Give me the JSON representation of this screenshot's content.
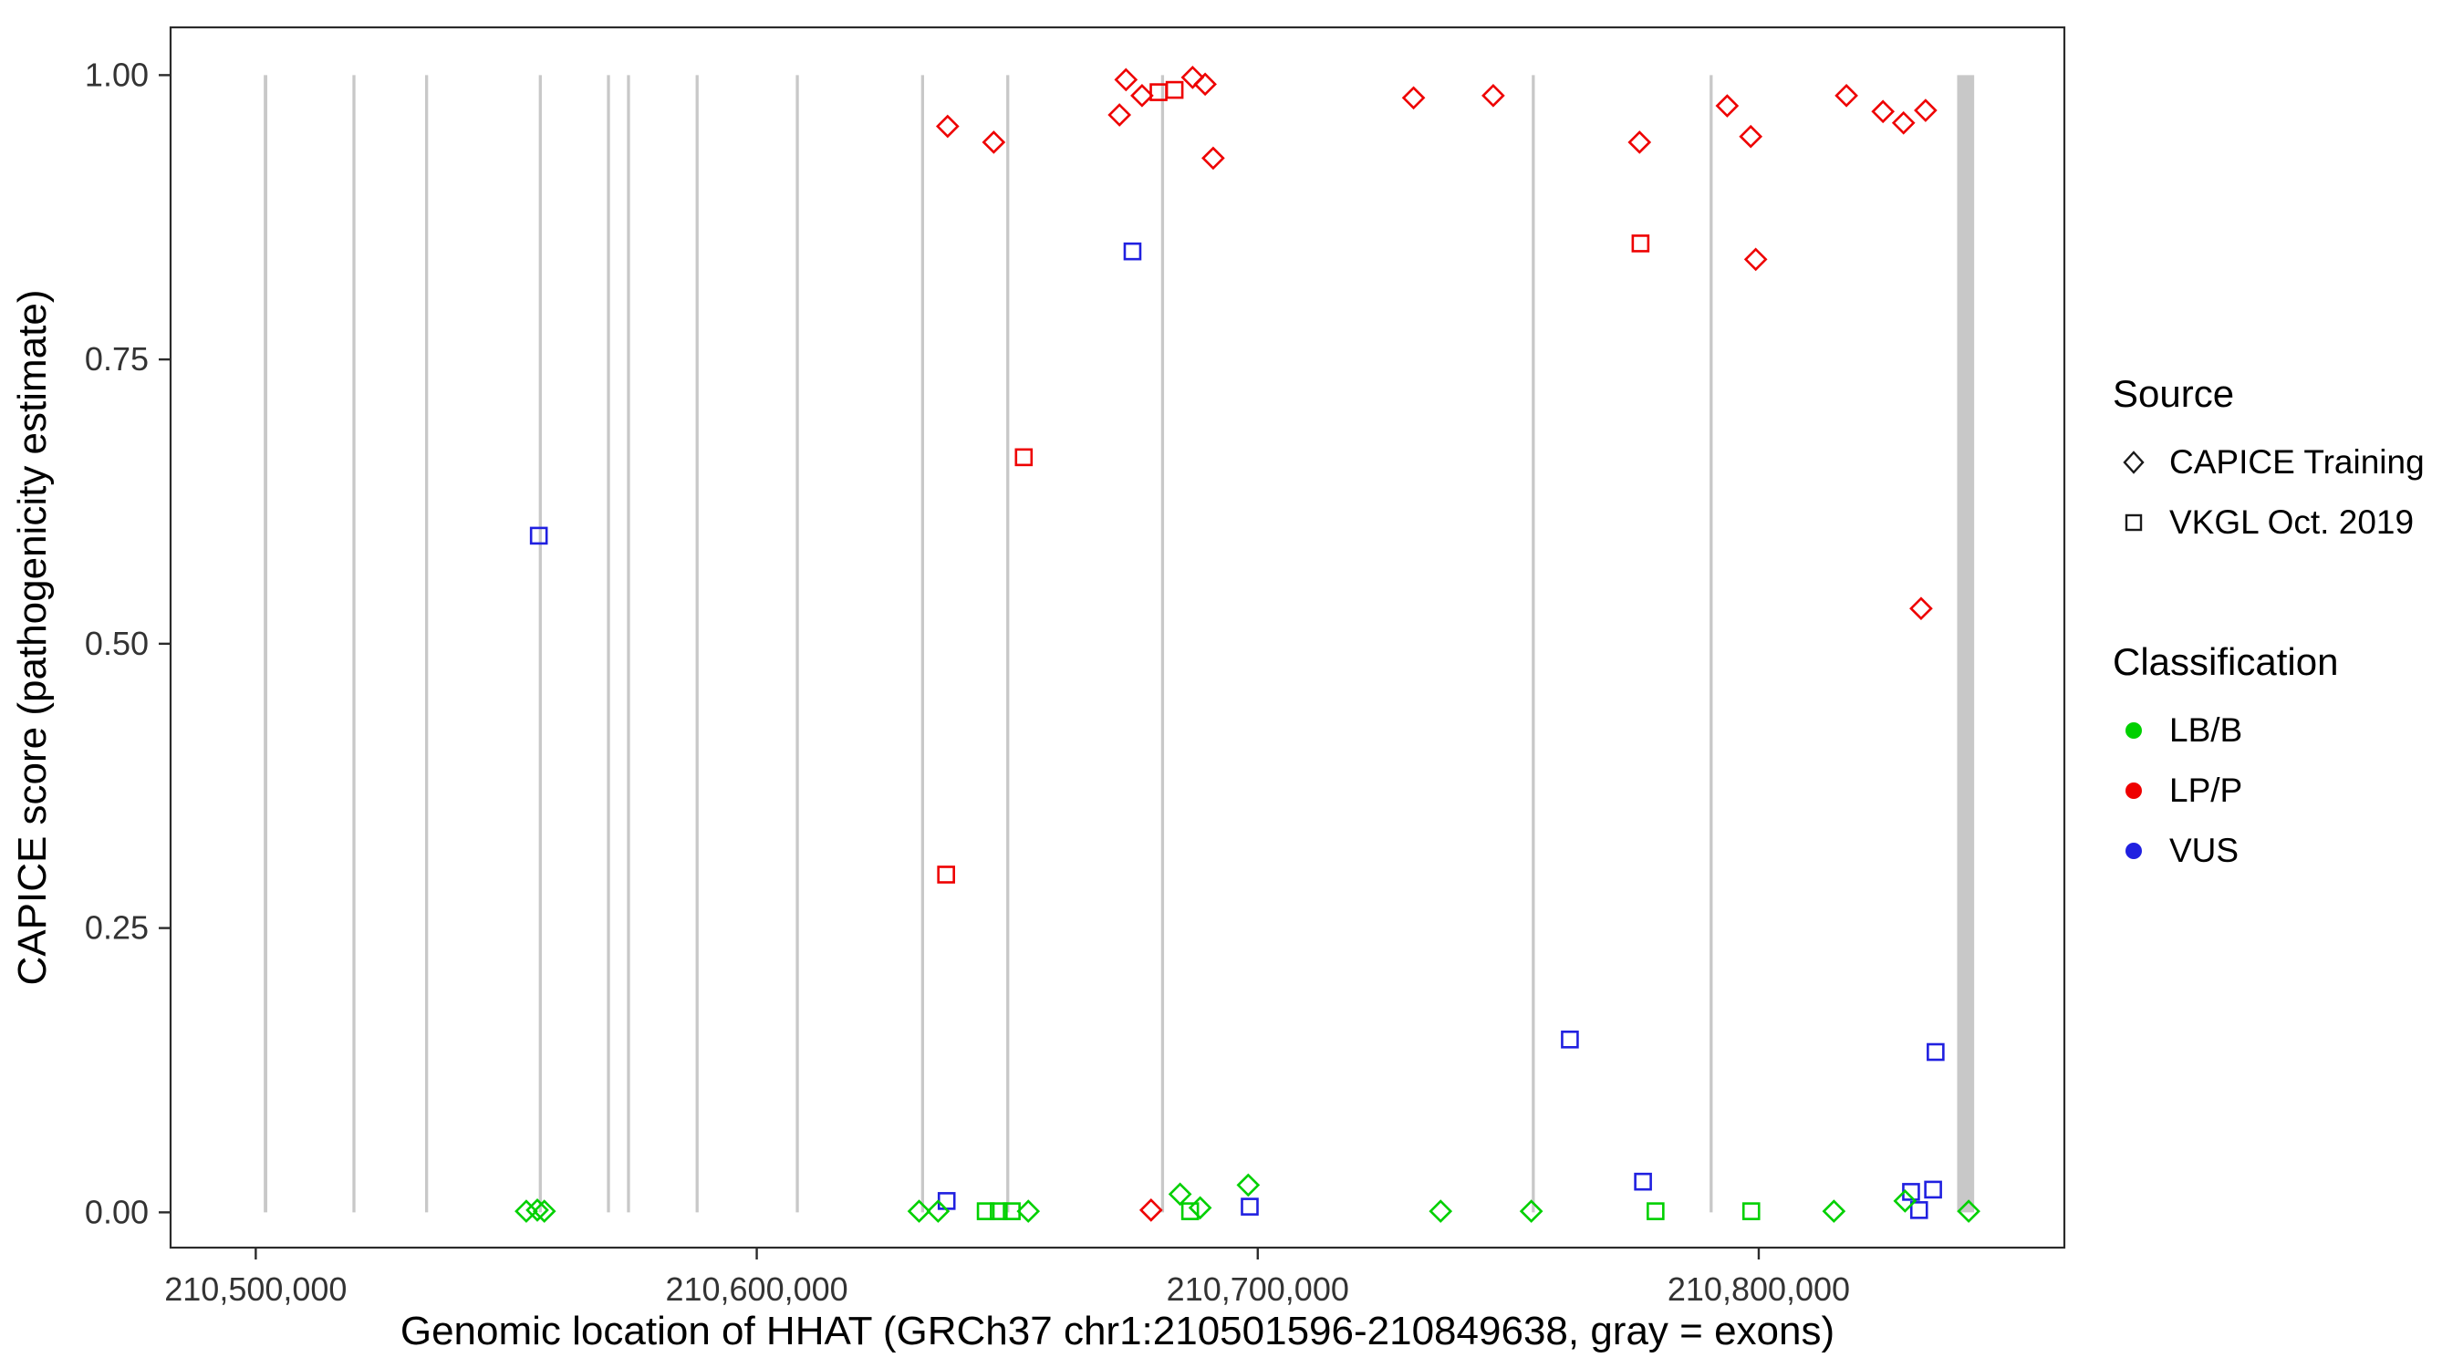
{
  "chart_data": {
    "type": "scatter",
    "title": "",
    "xlabel": "Genomic location of HHAT (GRCh37 chr1:210501596-210849638, gray = exons)",
    "ylabel": "CAPICE score (pathogenicity estimate)",
    "xlim": [
      210483000,
      210861000
    ],
    "ylim": [
      -0.031,
      1.042
    ],
    "grid": "none",
    "legend_position": "right",
    "shape_by": "source",
    "color_by": "classification",
    "x_ticks": [
      {
        "value": 210500000,
        "label": "210,500,000"
      },
      {
        "value": 210600000,
        "label": "210,600,000"
      },
      {
        "value": 210700000,
        "label": "210,700,000"
      },
      {
        "value": 210800000,
        "label": "210,800,000"
      }
    ],
    "y_ticks": [
      {
        "value": 0.0,
        "label": "0.00"
      },
      {
        "value": 0.25,
        "label": "0.25"
      },
      {
        "value": 0.5,
        "label": "0.50"
      },
      {
        "value": 0.75,
        "label": "0.75"
      },
      {
        "value": 1.0,
        "label": "1.00"
      }
    ],
    "colors": {
      "LB/B": "#00D000",
      "LP/P": "#EE0000",
      "VUS": "#2020E0",
      "exon": "#C8C8C8",
      "axis": "#2b2b2b"
    },
    "legend": {
      "source": {
        "title": "Source",
        "items": [
          {
            "label": "CAPICE Training",
            "shape": "diamond"
          },
          {
            "label": "VKGL Oct. 2019",
            "shape": "square"
          }
        ]
      },
      "classification": {
        "title": "Classification",
        "items": [
          {
            "label": "LB/B"
          },
          {
            "label": "LP/P"
          },
          {
            "label": "VUS"
          }
        ]
      }
    },
    "exons": [
      {
        "start": 210501596,
        "end": 210502300
      },
      {
        "start": 210519300,
        "end": 210519900
      },
      {
        "start": 210533800,
        "end": 210534400
      },
      {
        "start": 210556500,
        "end": 210557100
      },
      {
        "start": 210570100,
        "end": 210570700
      },
      {
        "start": 210574100,
        "end": 210574700
      },
      {
        "start": 210587800,
        "end": 210588400
      },
      {
        "start": 210607800,
        "end": 210608400
      },
      {
        "start": 210632800,
        "end": 210633400
      },
      {
        "start": 210649800,
        "end": 210650400
      },
      {
        "start": 210680700,
        "end": 210681300
      },
      {
        "start": 210754700,
        "end": 210755300
      },
      {
        "start": 210790200,
        "end": 210790800
      },
      {
        "start": 210839600,
        "end": 210843000
      }
    ],
    "points": [
      {
        "x": 210638100,
        "y": 0.955,
        "source": "CAPICE Training",
        "classification": "LP/P"
      },
      {
        "x": 210647300,
        "y": 0.941,
        "source": "CAPICE Training",
        "classification": "LP/P"
      },
      {
        "x": 210672400,
        "y": 0.965,
        "source": "CAPICE Training",
        "classification": "LP/P"
      },
      {
        "x": 210673700,
        "y": 0.996,
        "source": "CAPICE Training",
        "classification": "LP/P"
      },
      {
        "x": 210676900,
        "y": 0.982,
        "source": "CAPICE Training",
        "classification": "LP/P"
      },
      {
        "x": 210687000,
        "y": 0.998,
        "source": "CAPICE Training",
        "classification": "LP/P"
      },
      {
        "x": 210689500,
        "y": 0.992,
        "source": "CAPICE Training",
        "classification": "LP/P"
      },
      {
        "x": 210691100,
        "y": 0.927,
        "source": "CAPICE Training",
        "classification": "LP/P"
      },
      {
        "x": 210731100,
        "y": 0.98,
        "source": "CAPICE Training",
        "classification": "LP/P"
      },
      {
        "x": 210747000,
        "y": 0.982,
        "source": "CAPICE Training",
        "classification": "LP/P"
      },
      {
        "x": 210776200,
        "y": 0.941,
        "source": "CAPICE Training",
        "classification": "LP/P"
      },
      {
        "x": 210793700,
        "y": 0.973,
        "source": "CAPICE Training",
        "classification": "LP/P"
      },
      {
        "x": 210798400,
        "y": 0.946,
        "source": "CAPICE Training",
        "classification": "LP/P"
      },
      {
        "x": 210799400,
        "y": 0.838,
        "source": "CAPICE Training",
        "classification": "LP/P"
      },
      {
        "x": 210817500,
        "y": 0.982,
        "source": "CAPICE Training",
        "classification": "LP/P"
      },
      {
        "x": 210824800,
        "y": 0.968,
        "source": "CAPICE Training",
        "classification": "LP/P"
      },
      {
        "x": 210828900,
        "y": 0.958,
        "source": "CAPICE Training",
        "classification": "LP/P"
      },
      {
        "x": 210833300,
        "y": 0.969,
        "source": "CAPICE Training",
        "classification": "LP/P"
      },
      {
        "x": 210832400,
        "y": 0.531,
        "source": "CAPICE Training",
        "classification": "LP/P"
      },
      {
        "x": 210678700,
        "y": 0.002,
        "source": "CAPICE Training",
        "classification": "LP/P"
      },
      {
        "x": 210680200,
        "y": 0.985,
        "source": "VKGL Oct. 2019",
        "classification": "LP/P"
      },
      {
        "x": 210683400,
        "y": 0.987,
        "source": "VKGL Oct. 2019",
        "classification": "LP/P"
      },
      {
        "x": 210653300,
        "y": 0.664,
        "source": "VKGL Oct. 2019",
        "classification": "LP/P"
      },
      {
        "x": 210637800,
        "y": 0.297,
        "source": "VKGL Oct. 2019",
        "classification": "LP/P"
      },
      {
        "x": 210776400,
        "y": 0.852,
        "source": "VKGL Oct. 2019",
        "classification": "LP/P"
      },
      {
        "x": 210556500,
        "y": 0.595,
        "source": "VKGL Oct. 2019",
        "classification": "VUS"
      },
      {
        "x": 210675000,
        "y": 0.845,
        "source": "VKGL Oct. 2019",
        "classification": "VUS"
      },
      {
        "x": 210762300,
        "y": 0.152,
        "source": "VKGL Oct. 2019",
        "classification": "VUS"
      },
      {
        "x": 210776900,
        "y": 0.027,
        "source": "VKGL Oct. 2019",
        "classification": "VUS"
      },
      {
        "x": 210835300,
        "y": 0.141,
        "source": "VKGL Oct. 2019",
        "classification": "VUS"
      },
      {
        "x": 210637900,
        "y": 0.01,
        "source": "VKGL Oct. 2019",
        "classification": "VUS"
      },
      {
        "x": 210698400,
        "y": 0.005,
        "source": "VKGL Oct. 2019",
        "classification": "VUS"
      },
      {
        "x": 210830400,
        "y": 0.018,
        "source": "VKGL Oct. 2019",
        "classification": "VUS"
      },
      {
        "x": 210834800,
        "y": 0.02,
        "source": "VKGL Oct. 2019",
        "classification": "VUS"
      },
      {
        "x": 210832000,
        "y": 0.002,
        "source": "VKGL Oct. 2019",
        "classification": "VUS"
      },
      {
        "x": 210554000,
        "y": 0.001,
        "source": "CAPICE Training",
        "classification": "LB/B"
      },
      {
        "x": 210556200,
        "y": 0.002,
        "source": "CAPICE Training",
        "classification": "LB/B"
      },
      {
        "x": 210557600,
        "y": 0.001,
        "source": "CAPICE Training",
        "classification": "LB/B"
      },
      {
        "x": 210632400,
        "y": 0.001,
        "source": "CAPICE Training",
        "classification": "LB/B"
      },
      {
        "x": 210636200,
        "y": 0.001,
        "source": "CAPICE Training",
        "classification": "LB/B"
      },
      {
        "x": 210654200,
        "y": 0.001,
        "source": "CAPICE Training",
        "classification": "LB/B"
      },
      {
        "x": 210684500,
        "y": 0.016,
        "source": "CAPICE Training",
        "classification": "LB/B"
      },
      {
        "x": 210688500,
        "y": 0.004,
        "source": "CAPICE Training",
        "classification": "LB/B"
      },
      {
        "x": 210698100,
        "y": 0.024,
        "source": "CAPICE Training",
        "classification": "LB/B"
      },
      {
        "x": 210736500,
        "y": 0.001,
        "source": "CAPICE Training",
        "classification": "LB/B"
      },
      {
        "x": 210754600,
        "y": 0.001,
        "source": "CAPICE Training",
        "classification": "LB/B"
      },
      {
        "x": 210815000,
        "y": 0.001,
        "source": "CAPICE Training",
        "classification": "LB/B"
      },
      {
        "x": 210829200,
        "y": 0.01,
        "source": "CAPICE Training",
        "classification": "LB/B"
      },
      {
        "x": 210841900,
        "y": 0.001,
        "source": "CAPICE Training",
        "classification": "LB/B"
      },
      {
        "x": 210645700,
        "y": 0.001,
        "source": "VKGL Oct. 2019",
        "classification": "LB/B"
      },
      {
        "x": 210648300,
        "y": 0.001,
        "source": "VKGL Oct. 2019",
        "classification": "LB/B"
      },
      {
        "x": 210650900,
        "y": 0.001,
        "source": "VKGL Oct. 2019",
        "classification": "LB/B"
      },
      {
        "x": 210686500,
        "y": 0.001,
        "source": "VKGL Oct. 2019",
        "classification": "LB/B"
      },
      {
        "x": 210779400,
        "y": 0.001,
        "source": "VKGL Oct. 2019",
        "classification": "LB/B"
      },
      {
        "x": 210798500,
        "y": 0.001,
        "source": "VKGL Oct. 2019",
        "classification": "LB/B"
      }
    ]
  }
}
